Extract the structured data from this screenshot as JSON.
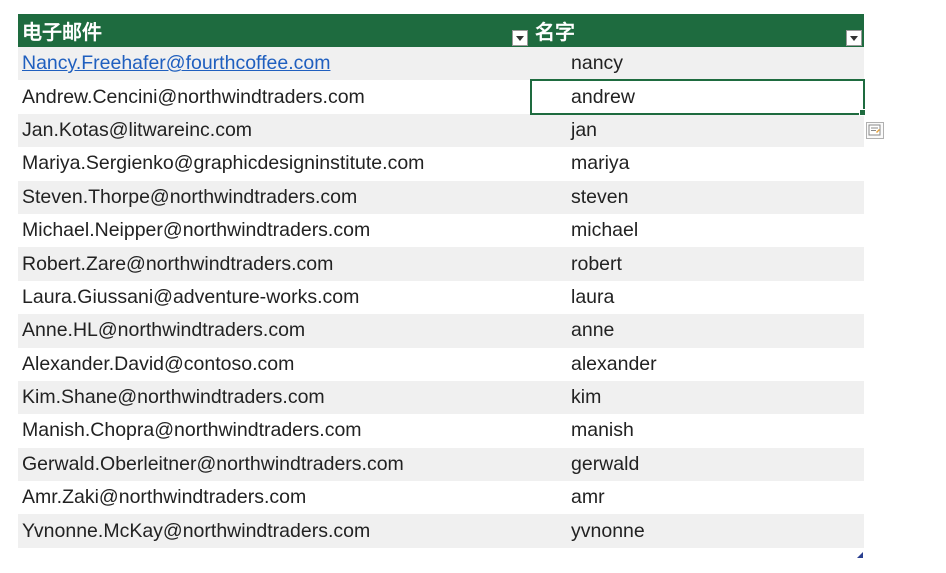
{
  "table": {
    "headers": {
      "email": "电子邮件",
      "name": "名字"
    },
    "rows": [
      {
        "email": "Nancy.Freehafer@fourthcoffee.com",
        "name": "nancy",
        "email_is_link": true
      },
      {
        "email": "Andrew.Cencini@northwindtraders.com",
        "name": "andrew",
        "selected": true
      },
      {
        "email": "Jan.Kotas@litwareinc.com",
        "name": "jan"
      },
      {
        "email": "Mariya.Sergienko@graphicdesigninstitute.com",
        "name": "mariya"
      },
      {
        "email": "Steven.Thorpe@northwindtraders.com",
        "name": "steven"
      },
      {
        "email": "Michael.Neipper@northwindtraders.com",
        "name": "michael"
      },
      {
        "email": "Robert.Zare@northwindtraders.com",
        "name": "robert"
      },
      {
        "email": "Laura.Giussani@adventure-works.com",
        "name": "laura"
      },
      {
        "email": "Anne.HL@northwindtraders.com",
        "name": "anne"
      },
      {
        "email": "Alexander.David@contoso.com",
        "name": "alexander"
      },
      {
        "email": "Kim.Shane@northwindtraders.com",
        "name": "kim"
      },
      {
        "email": "Manish.Chopra@northwindtraders.com",
        "name": "manish"
      },
      {
        "email": "Gerwald.Oberleitner@northwindtraders.com",
        "name": "gerwald"
      },
      {
        "email": "Amr.Zaki@northwindtraders.com",
        "name": "amr"
      },
      {
        "email": "Yvnonne.McKay@northwindtraders.com",
        "name": "yvnonne"
      }
    ]
  },
  "icons": {
    "filter": "filter-dropdown-icon",
    "quick_analysis": "flash-fill-options-icon",
    "resize": "table-resize-handle-icon"
  },
  "colors": {
    "header_bg": "#1e6b3f",
    "header_text": "#ffffff",
    "stripe": "#f0f0f0",
    "link": "#1f5fbf",
    "selection": "#1e6b3f"
  }
}
